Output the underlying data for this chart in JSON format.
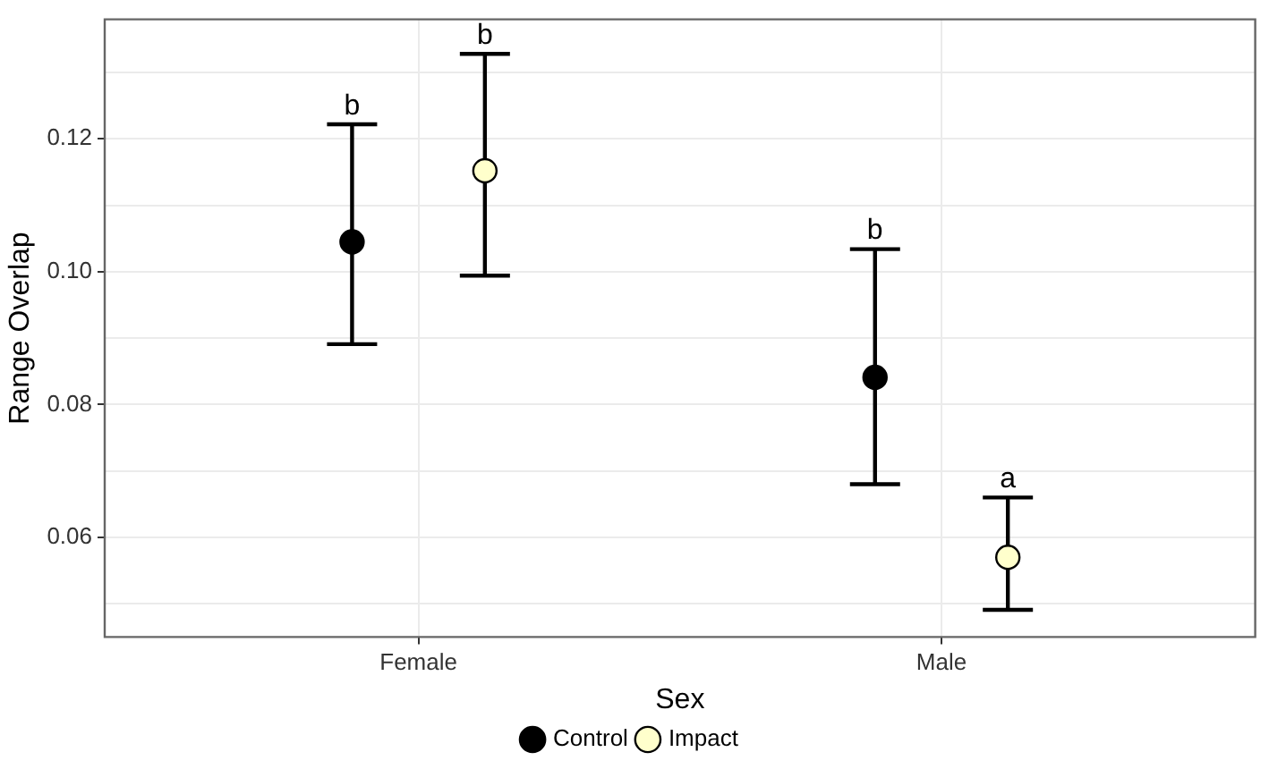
{
  "chart_data": {
    "type": "scatter",
    "xlabel": "Sex",
    "ylabel": "Range Overlap",
    "categories": [
      "Female",
      "Male"
    ],
    "series": [
      {
        "name": "Control",
        "color": "#000000",
        "values": [
          0.1045,
          0.0841
        ],
        "errors": [
          [
            0.0891,
            0.1222
          ],
          [
            0.068,
            0.1034
          ]
        ]
      },
      {
        "name": "Impact",
        "color": "#ffffcc",
        "values": [
          0.1152,
          0.057
        ],
        "errors": [
          [
            0.0994,
            0.1328
          ],
          [
            0.0491,
            0.066
          ]
        ]
      }
    ],
    "ylim": [
      0.045,
      0.138
    ],
    "yticks": [
      {
        "value": 0.05,
        "label": null
      },
      {
        "value": 0.06,
        "label": "0.06"
      },
      {
        "value": 0.07,
        "label": null
      },
      {
        "value": 0.08,
        "label": "0.08"
      },
      {
        "value": 0.09,
        "label": null
      },
      {
        "value": 0.1,
        "label": "0.10"
      },
      {
        "value": 0.11,
        "label": null
      },
      {
        "value": 0.12,
        "label": "0.12"
      },
      {
        "value": 0.13,
        "label": null
      }
    ],
    "annotations": [
      "b",
      "b",
      "b",
      "a"
    ],
    "grid": true,
    "legend": "bottom",
    "marker": "circle"
  }
}
